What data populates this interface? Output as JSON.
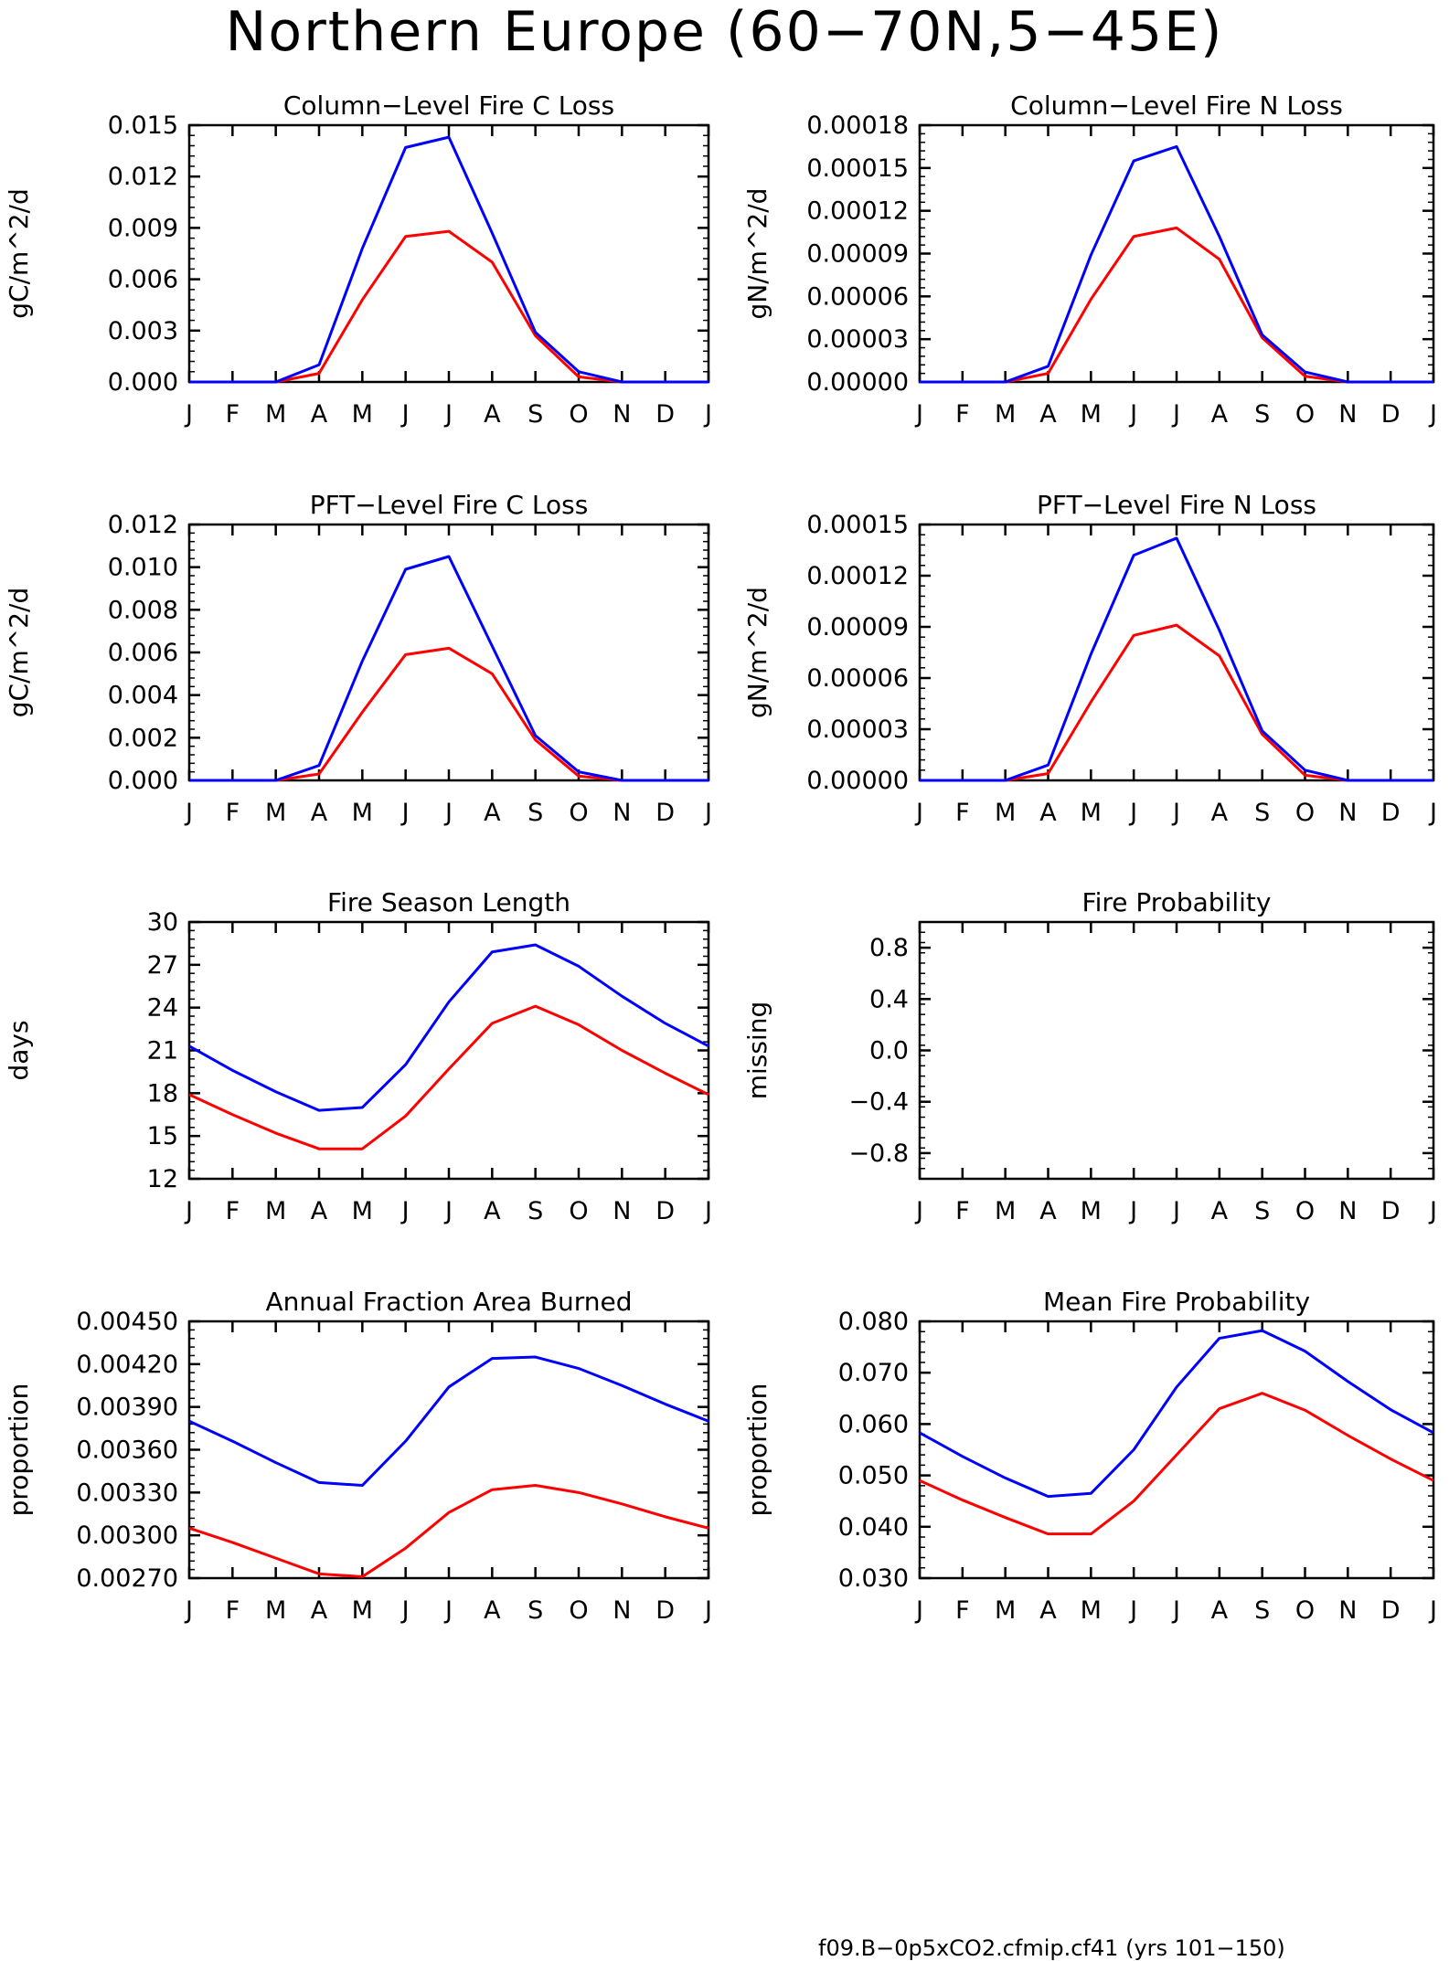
{
  "title": "Northern Europe (60−70N,5−45E)",
  "months": [
    "J",
    "F",
    "M",
    "A",
    "M",
    "J",
    "J",
    "A",
    "S",
    "O",
    "N",
    "D",
    "J"
  ],
  "colors": {
    "series_a": "#ff0000",
    "series_b": "#0000ff"
  },
  "legend": [
    {
      "label": "f09.B−0p5xCO2.cfmip.cf41 (yrs 101−150)",
      "color": "#ff0000"
    }
  ],
  "chart_data": [
    {
      "type": "line",
      "title": "Column−Level Fire C Loss",
      "ylabel": "gC/m^2/d",
      "ylim": [
        0,
        0.015
      ],
      "yticks": [
        "0.000",
        "0.003",
        "0.006",
        "0.009",
        "0.012",
        "0.015"
      ],
      "categories": [
        "J",
        "F",
        "M",
        "A",
        "M",
        "J",
        "J",
        "A",
        "S",
        "O",
        "N",
        "D",
        "J"
      ],
      "series": [
        {
          "color": "#ff0000",
          "values": [
            0,
            0,
            0,
            0.0005,
            0.0048,
            0.0085,
            0.0088,
            0.007,
            0.0027,
            0.0003,
            0,
            0,
            0
          ]
        },
        {
          "color": "#0000ff",
          "values": [
            0,
            0,
            0,
            0.001,
            0.0078,
            0.0137,
            0.0143,
            0.0087,
            0.0029,
            0.0006,
            0,
            0,
            0
          ]
        }
      ]
    },
    {
      "type": "line",
      "title": "Column−Level Fire N Loss",
      "ylabel": "gN/m^2/d",
      "ylim": [
        0,
        0.00018
      ],
      "yticks": [
        "0.00000",
        "0.00003",
        "0.00006",
        "0.00009",
        "0.00012",
        "0.00015",
        "0.00018"
      ],
      "categories": [
        "J",
        "F",
        "M",
        "A",
        "M",
        "J",
        "J",
        "A",
        "S",
        "O",
        "N",
        "D",
        "J"
      ],
      "series": [
        {
          "color": "#ff0000",
          "values": [
            0,
            0,
            0,
            6e-06,
            5.8e-05,
            0.000102,
            0.000108,
            8.6e-05,
            3.1e-05,
            4e-06,
            0,
            0,
            0
          ]
        },
        {
          "color": "#0000ff",
          "values": [
            0,
            0,
            0,
            1.1e-05,
            8.9e-05,
            0.000155,
            0.000165,
            0.000102,
            3.3e-05,
            7e-06,
            0,
            0,
            0
          ]
        }
      ]
    },
    {
      "type": "line",
      "title": "PFT−Level Fire C Loss",
      "ylabel": "gC/m^2/d",
      "ylim": [
        0,
        0.012
      ],
      "yticks": [
        "0.000",
        "0.002",
        "0.004",
        "0.006",
        "0.008",
        "0.010",
        "0.012"
      ],
      "categories": [
        "J",
        "F",
        "M",
        "A",
        "M",
        "J",
        "J",
        "A",
        "S",
        "O",
        "N",
        "D",
        "J"
      ],
      "series": [
        {
          "color": "#ff0000",
          "values": [
            0,
            0,
            0,
            0.0003,
            0.0032,
            0.0059,
            0.0062,
            0.005,
            0.0019,
            0.0002,
            0,
            0,
            0
          ]
        },
        {
          "color": "#0000ff",
          "values": [
            0,
            0,
            0,
            0.0007,
            0.0056,
            0.0099,
            0.0105,
            0.0063,
            0.0021,
            0.0004,
            0,
            0,
            0
          ]
        }
      ]
    },
    {
      "type": "line",
      "title": "PFT−Level Fire N Loss",
      "ylabel": "gN/m^2/d",
      "ylim": [
        0,
        0.00015
      ],
      "yticks": [
        "0.00000",
        "0.00003",
        "0.00006",
        "0.00009",
        "0.00012",
        "0.00015"
      ],
      "categories": [
        "J",
        "F",
        "M",
        "A",
        "M",
        "J",
        "J",
        "A",
        "S",
        "O",
        "N",
        "D",
        "J"
      ],
      "series": [
        {
          "color": "#ff0000",
          "values": [
            0,
            0,
            0,
            4e-06,
            4.6e-05,
            8.5e-05,
            9.1e-05,
            7.3e-05,
            2.7e-05,
            3e-06,
            0,
            0,
            0
          ]
        },
        {
          "color": "#0000ff",
          "values": [
            0,
            0,
            0,
            9e-06,
            7.4e-05,
            0.000132,
            0.000142,
            8.8e-05,
            2.9e-05,
            6e-06,
            0,
            0,
            0
          ]
        }
      ]
    },
    {
      "type": "line",
      "title": "Fire Season Length",
      "ylabel": "days",
      "ylim": [
        12,
        30
      ],
      "yticks": [
        "12",
        "15",
        "18",
        "21",
        "24",
        "27",
        "30"
      ],
      "categories": [
        "J",
        "F",
        "M",
        "A",
        "M",
        "J",
        "J",
        "A",
        "S",
        "O",
        "N",
        "D",
        "J"
      ],
      "series": [
        {
          "color": "#ff0000",
          "values": [
            17.9,
            16.5,
            15.2,
            14.1,
            14.1,
            16.4,
            19.7,
            22.9,
            24.1,
            22.8,
            21.0,
            19.4,
            17.9
          ]
        },
        {
          "color": "#0000ff",
          "values": [
            21.3,
            19.6,
            18.1,
            16.8,
            17.0,
            20.0,
            24.4,
            27.9,
            28.4,
            26.9,
            24.8,
            22.9,
            21.3
          ]
        }
      ]
    },
    {
      "type": "line",
      "title": "Fire Probability",
      "ylabel": "missing",
      "ylim": [
        -1.0,
        1.0
      ],
      "yticks": [
        "−0.8",
        "−0.4",
        "0.0",
        "0.4",
        "0.8"
      ],
      "ytick_values": [
        -0.8,
        -0.4,
        0.0,
        0.4,
        0.8
      ],
      "categories": [
        "J",
        "F",
        "M",
        "A",
        "M",
        "J",
        "J",
        "A",
        "S",
        "O",
        "N",
        "D",
        "J"
      ],
      "series": []
    },
    {
      "type": "line",
      "title": "Annual Fraction Area Burned",
      "ylabel": "proportion",
      "ylim": [
        0.0027,
        0.0045
      ],
      "yticks": [
        "0.00270",
        "0.00300",
        "0.00330",
        "0.00360",
        "0.00390",
        "0.00420",
        "0.00450"
      ],
      "categories": [
        "J",
        "F",
        "M",
        "A",
        "M",
        "J",
        "J",
        "A",
        "S",
        "O",
        "N",
        "D",
        "J"
      ],
      "series": [
        {
          "color": "#ff0000",
          "values": [
            0.00305,
            0.00295,
            0.00284,
            0.00273,
            0.00271,
            0.00291,
            0.00316,
            0.00332,
            0.00335,
            0.0033,
            0.00322,
            0.00313,
            0.00305
          ]
        },
        {
          "color": "#0000ff",
          "values": [
            0.0038,
            0.00366,
            0.00351,
            0.00337,
            0.00335,
            0.00366,
            0.00404,
            0.00424,
            0.00425,
            0.00417,
            0.00405,
            0.00392,
            0.0038
          ]
        }
      ]
    },
    {
      "type": "line",
      "title": "Mean Fire Probability",
      "ylabel": "proportion",
      "ylim": [
        0.03,
        0.08
      ],
      "yticks": [
        "0.030",
        "0.040",
        "0.050",
        "0.060",
        "0.070",
        "0.080"
      ],
      "categories": [
        "J",
        "F",
        "M",
        "A",
        "M",
        "J",
        "J",
        "A",
        "S",
        "O",
        "N",
        "D",
        "J"
      ],
      "series": [
        {
          "color": "#ff0000",
          "values": [
            0.049,
            0.0452,
            0.0418,
            0.0386,
            0.0386,
            0.045,
            0.054,
            0.063,
            0.066,
            0.0627,
            0.0578,
            0.0532,
            0.049
          ]
        },
        {
          "color": "#0000ff",
          "values": [
            0.0583,
            0.0537,
            0.0495,
            0.0459,
            0.0465,
            0.055,
            0.0672,
            0.0767,
            0.0782,
            0.0742,
            0.0683,
            0.0628,
            0.0583
          ]
        }
      ]
    }
  ]
}
